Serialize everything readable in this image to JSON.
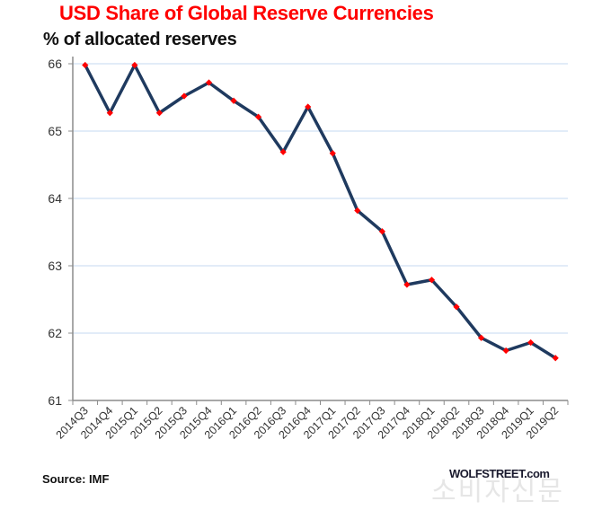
{
  "chart_data": {
    "type": "line",
    "title": "USD Share of Global  Reserve Currencies",
    "subtitle": "% of allocated reserves",
    "xlabel": "",
    "ylabel": "",
    "categories": [
      "2014Q3",
      "2014Q4",
      "2015Q1",
      "2015Q2",
      "2015Q3",
      "2015Q4",
      "2016Q1",
      "2016Q2",
      "2016Q3",
      "2016Q4",
      "2017Q1",
      "2017Q2",
      "2017Q3",
      "2017Q4",
      "2018Q1",
      "2018Q2",
      "2018Q3",
      "2018Q4",
      "2019Q1",
      "2019Q2"
    ],
    "series": [
      {
        "name": "USD share",
        "values": [
          65.98,
          65.27,
          65.98,
          65.27,
          65.52,
          65.72,
          65.45,
          65.21,
          64.69,
          65.36,
          64.67,
          63.82,
          63.51,
          62.72,
          62.79,
          62.39,
          61.93,
          61.74,
          61.86,
          61.63
        ],
        "line_color": "#1f3a5f",
        "marker_color": "#ff0000"
      }
    ],
    "ylim": [
      61,
      66
    ],
    "yticks": [
      61,
      62,
      63,
      64,
      65,
      66
    ],
    "grid": true,
    "grid_color": "#c5d9f1",
    "legend": "none"
  },
  "footer": {
    "source": "Source: IMF",
    "credit": "WOLFSTREET.com",
    "watermark": "소비자신문"
  },
  "colors": {
    "title": "#ff0000",
    "line": "#1f3a5f",
    "marker": "#ff0000"
  }
}
